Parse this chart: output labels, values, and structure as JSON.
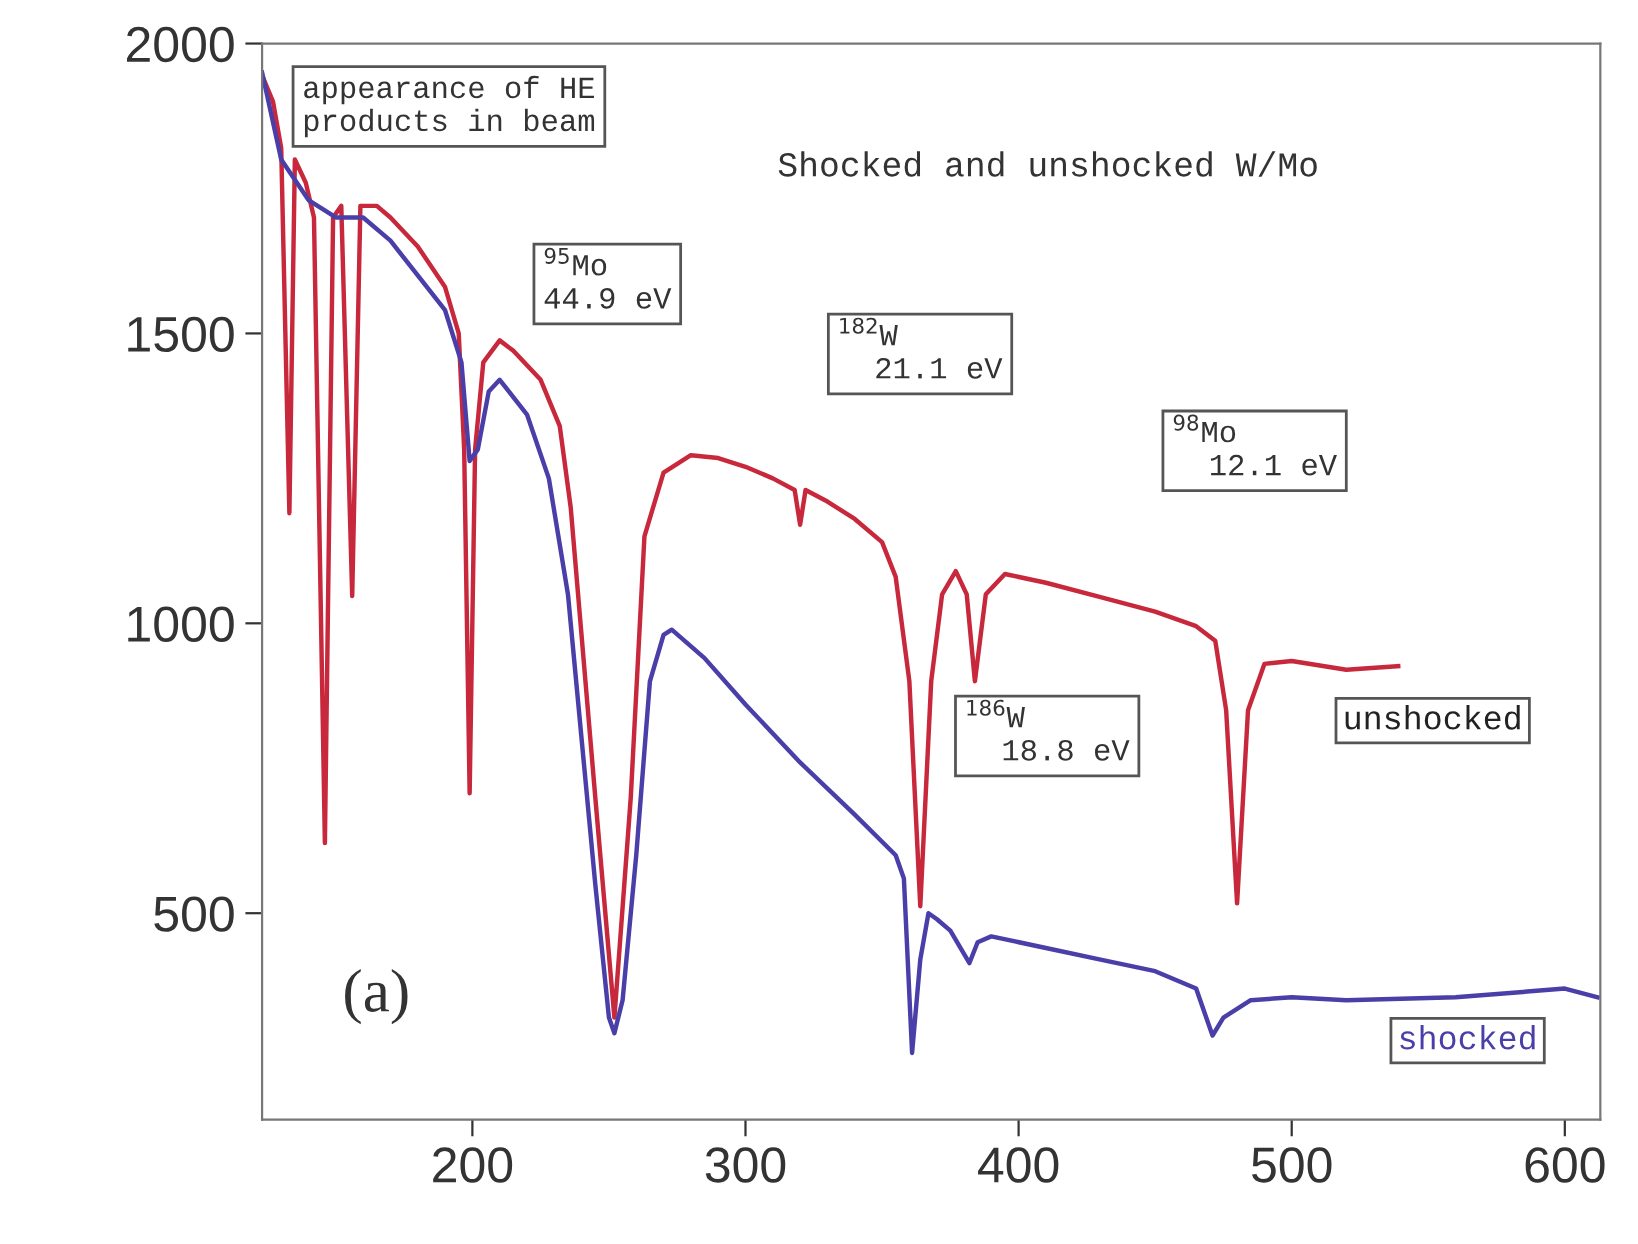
{
  "chart_data": {
    "type": "line",
    "annotations": [
      "appearance of HE\nproducts in beam",
      "Shocked and unshocked W/Mo",
      "$^{95}$Mo\n44.9 eV",
      "$^{182}$W\n  21.1 eV",
      "$^{98}$Mo\n  12.1 eV",
      "$^{186}$W\n  18.8 eV",
      "(a)"
    ],
    "xlim": [
      123,
      613
    ],
    "ylim": [
      144,
      2000
    ],
    "xticks": [
      200,
      300,
      400,
      500,
      600
    ],
    "yticks": [
      500,
      1000,
      1500,
      2000
    ],
    "grid": false,
    "legend": false,
    "marker": "none",
    "line_style": "solid",
    "series": [
      {
        "name": "unshocked",
        "color": "#c8283c",
        "x": [
          123,
          127,
          130,
          133,
          135,
          139,
          142,
          146,
          149,
          152,
          156,
          159,
          165,
          170,
          180,
          190,
          195,
          197,
          199,
          201,
          204,
          210,
          215,
          225,
          232,
          236,
          245,
          252,
          258,
          263,
          270,
          280,
          290,
          300,
          310,
          318,
          320,
          322,
          330,
          340,
          350,
          355,
          360,
          364,
          368,
          372,
          377,
          381,
          384,
          388,
          395,
          410,
          430,
          450,
          465,
          472,
          476,
          480,
          484,
          490,
          500,
          520,
          539
        ],
        "values": [
          1945,
          1900,
          1820,
          1190,
          1800,
          1760,
          1700,
          621,
          1700,
          1720,
          1047,
          1720,
          1720,
          1700,
          1650,
          1580,
          1500,
          1300,
          707,
          1300,
          1450,
          1488,
          1470,
          1420,
          1340,
          1200,
          700,
          320,
          700,
          1150,
          1260,
          1290,
          1285,
          1270,
          1250,
          1230,
          1170,
          1230,
          1210,
          1180,
          1140,
          1080,
          900,
          512,
          900,
          1050,
          1090,
          1050,
          900,
          1050,
          1085,
          1070,
          1045,
          1020,
          995,
          970,
          850,
          517,
          850,
          930,
          935,
          920,
          926
        ]
      },
      {
        "name": "shocked",
        "color": "#4a3fa8",
        "x": [
          123,
          130,
          140,
          150,
          160,
          170,
          180,
          190,
          196,
          199,
          202,
          206,
          210,
          220,
          228,
          235,
          240,
          245,
          250,
          252,
          255,
          260,
          265,
          270,
          273,
          285,
          300,
          320,
          340,
          355,
          358,
          361,
          364,
          367,
          370,
          375,
          382,
          385,
          390,
          410,
          430,
          450,
          465,
          471,
          475,
          485,
          500,
          520,
          560,
          600,
          612
        ],
        "values": [
          1950,
          1800,
          1730,
          1700,
          1700,
          1660,
          1600,
          1540,
          1450,
          1280,
          1300,
          1400,
          1420,
          1360,
          1250,
          1050,
          800,
          550,
          320,
          293,
          350,
          600,
          900,
          980,
          989,
          940,
          860,
          760,
          670,
          600,
          560,
          259,
          420,
          500,
          490,
          470,
          414,
          450,
          460,
          440,
          420,
          400,
          370,
          289,
          320,
          350,
          355,
          350,
          355,
          370,
          355
        ]
      }
    ]
  }
}
